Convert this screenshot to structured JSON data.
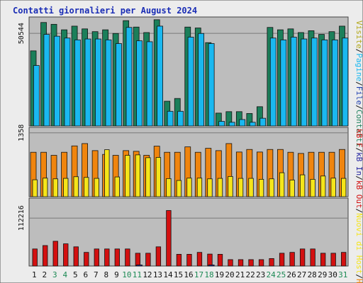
{
  "chart_data": {
    "type": "bar",
    "title": "Contatti giornalieri per August 2024",
    "categories": [
      "1",
      "2",
      "3",
      "4",
      "5",
      "6",
      "7",
      "8",
      "9",
      "10",
      "11",
      "12",
      "13",
      "14",
      "15",
      "16",
      "17",
      "18",
      "19",
      "20",
      "21",
      "22",
      "23",
      "24",
      "25",
      "26",
      "27",
      "28",
      "29",
      "30",
      "31"
    ],
    "weekend_days": [
      "3",
      "4",
      "10",
      "11",
      "17",
      "18",
      "24",
      "25",
      "31"
    ],
    "panels": [
      {
        "name": "top",
        "y_tick_label": "50544",
        "y_tick_value": 50544,
        "ymax": 59500,
        "series": [
          {
            "name": "Contatti",
            "color": "#1b7f5a",
            "values": [
              41000,
              56500,
              55500,
              52500,
              54500,
              53000,
              51500,
              52500,
              50500,
              57500,
              54000,
              51000,
              58000,
              13500,
              15000,
              54000,
              53500,
              45500,
              7000,
              7800,
              7800,
              6800,
              10500,
              53800,
              52500,
              53000,
              51000,
              52000,
              50000,
              51500,
              54500
            ]
          },
          {
            "name": "File",
            "color": "#1e3fb0",
            "values": [
              0,
              0,
              0,
              0,
              0,
              0,
              0,
              0,
              0,
              0,
              0,
              0,
              0,
              0,
              0,
              0,
              0,
              0,
              0,
              0,
              0,
              0,
              0,
              0,
              0,
              0,
              0,
              0,
              0,
              0,
              0
            ]
          },
          {
            "name": "Pagine",
            "color": "#1ab8f0",
            "values": [
              33000,
              50000,
              49000,
              48000,
              47000,
              47500,
              47500,
              47000,
              45000,
              53800,
              46500,
              46000,
              54500,
              8000,
              8000,
              48500,
              50500,
              45000,
              2500,
              2000,
              3500,
              2000,
              4200,
              48000,
              47000,
              48500,
              47500,
              48000,
              47000,
              47000,
              48000
            ]
          }
        ]
      },
      {
        "name": "middle",
        "y_tick_label": "1358",
        "y_tick_value": 1358,
        "ymax": 1475,
        "series": [
          {
            "name": "Host",
            "color": "#f0850e",
            "values": [
              945,
              945,
              880,
              945,
              1080,
              1130,
              980,
              900,
              880,
              980,
              965,
              880,
              1075,
              945,
              945,
              1060,
              945,
              1030,
              980,
              1130,
              950,
              1005,
              950,
              1005,
              1005,
              945,
              920,
              945,
              945,
              945,
              1005
            ]
          },
          {
            "name": "Nuovi di Host",
            "color": "#f5e51a",
            "values": [
              360,
              395,
              380,
              390,
              425,
              410,
              390,
              1000,
              420,
              880,
              890,
              830,
              835,
              385,
              345,
              395,
              395,
              380,
              390,
              430,
              390,
              390,
              370,
              380,
              510,
              355,
              465,
              370,
              440,
              395,
              390
            ]
          },
          {
            "name": "Visite",
            "color": "#b3a91a",
            "values": [
              0,
              0,
              0,
              0,
              0,
              0,
              0,
              0,
              0,
              0,
              0,
              0,
              0,
              0,
              0,
              0,
              0,
              0,
              0,
              0,
              0,
              0,
              0,
              0,
              0,
              0,
              0,
              0,
              0,
              0,
              0
            ]
          }
        ]
      },
      {
        "name": "bottom",
        "y_tick_label": "112216",
        "y_tick_value": 112216,
        "ymax": 159000,
        "series": [
          {
            "name": "kB F",
            "color": "#e01818",
            "values": [
              0,
              0,
              0,
              0,
              0,
              0,
              0,
              0,
              0,
              0,
              0,
              0,
              0,
              0,
              0,
              0,
              0,
              0,
              0,
              0,
              0,
              0,
              0,
              0,
              0,
              0,
              0,
              0,
              0,
              0,
              0
            ]
          },
          {
            "name": "kB Out",
            "color": "#d31010",
            "values": [
              40000,
              48000,
              58000,
              52000,
              45000,
              32000,
              40000,
              40000,
              40000,
              40000,
              30000,
              30000,
              45000,
              130000,
              27500,
              27500,
              32000,
              28000,
              27500,
              15000,
              15000,
              15000,
              15000,
              17500,
              30000,
              32000,
              40000,
              40000,
              30000,
              30000,
              32000
            ]
          },
          {
            "name": "kB In",
            "color": "#2424a0",
            "values": [
              0,
              0,
              0,
              0,
              0,
              0,
              0,
              0,
              0,
              0,
              2500,
              0,
              0,
              0,
              0,
              0,
              0,
              2500,
              0,
              0,
              0,
              0,
              0,
              0,
              0,
              0,
              0,
              0,
              0,
              0,
              0
            ]
          }
        ]
      }
    ],
    "legend_right": {
      "top": [
        "Contatti",
        "File",
        "Pagine",
        "Visite"
      ],
      "bottom": [
        "Host",
        "Nuovi di Host",
        "kB Out",
        "kB In",
        "kB F"
      ],
      "placement": "right-vertical"
    },
    "grid": true
  }
}
